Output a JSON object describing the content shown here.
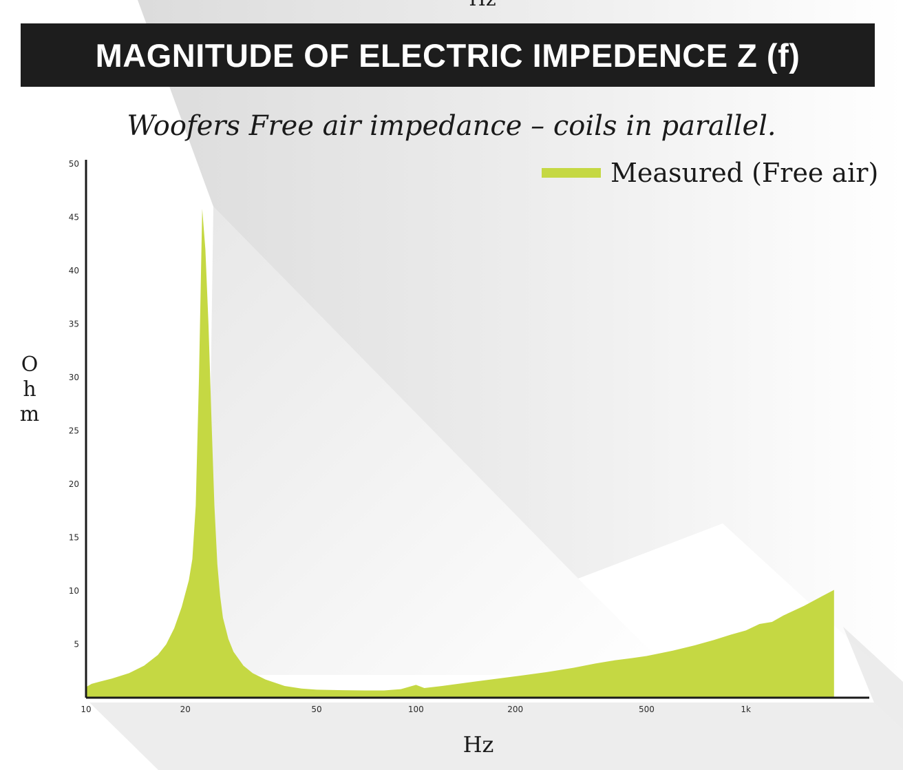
{
  "top_residue": "Hz",
  "header": {
    "title": "MAGNITUDE OF ELECTRIC IMPEDENCE Z (f)"
  },
  "colors": {
    "series": "#c5d843",
    "header_bg": "#1d1d1d",
    "axis": "#1a1a1a"
  },
  "chart_data": {
    "type": "area",
    "title": "MAGNITUDE OF ELECTRIC IMPEDENCE Z (f)",
    "subtitle": "Woofers Free air impedance – coils in parallel.",
    "xlabel": "Hz",
    "ylabel": "Ohm",
    "xscale": "log",
    "xlim": [
      10,
      2000
    ],
    "ylim": [
      0,
      50
    ],
    "yticks": [
      5,
      10,
      15,
      20,
      25,
      30,
      35,
      40,
      45,
      50
    ],
    "xticks": [
      {
        "value": 10,
        "label": "10"
      },
      {
        "value": 20,
        "label": "20"
      },
      {
        "value": 50,
        "label": "50"
      },
      {
        "value": 100,
        "label": "100"
      },
      {
        "value": 200,
        "label": "200"
      },
      {
        "value": 500,
        "label": "500"
      },
      {
        "value": 1000,
        "label": "1k"
      }
    ],
    "grid": false,
    "legend_position": "top-right",
    "series": [
      {
        "name": "Measured (Free air)",
        "x": [
          10,
          10.4,
          11,
          12,
          13.5,
          15,
          16.5,
          17.5,
          18.5,
          19.5,
          20.5,
          21,
          21.5,
          22,
          22.5,
          23,
          23.5,
          24,
          24.5,
          25,
          25.5,
          26,
          27,
          28,
          30,
          32,
          35,
          40,
          45,
          50,
          60,
          70,
          80,
          90,
          100,
          106,
          120,
          150,
          200,
          250,
          300,
          350,
          400,
          450,
          500,
          600,
          700,
          800,
          900,
          1000,
          1100,
          1200,
          1300,
          1500,
          1700,
          1850
        ],
        "y": [
          1.0,
          1.3,
          1.5,
          1.8,
          2.3,
          3.0,
          4.0,
          5.0,
          6.5,
          8.5,
          11.0,
          13.0,
          18.0,
          30.0,
          45.8,
          42.0,
          35.0,
          26.0,
          18.0,
          12.5,
          9.5,
          7.5,
          5.5,
          4.3,
          3.0,
          2.3,
          1.7,
          1.1,
          0.85,
          0.75,
          0.7,
          0.68,
          0.68,
          0.8,
          1.2,
          0.9,
          1.1,
          1.5,
          2.0,
          2.4,
          2.8,
          3.2,
          3.5,
          3.7,
          3.9,
          4.4,
          4.9,
          5.4,
          5.9,
          6.3,
          6.9,
          7.1,
          7.7,
          8.6,
          9.5,
          10.1
        ]
      }
    ]
  }
}
